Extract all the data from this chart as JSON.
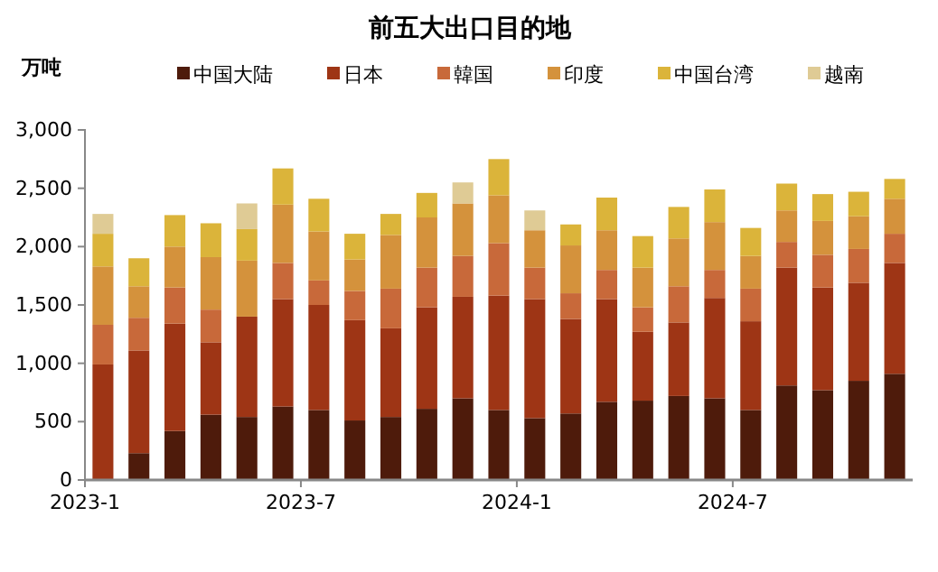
{
  "chart_data": {
    "type": "bar",
    "stacked": true,
    "title": "前五大出口目的地",
    "ylabel": "万吨",
    "categories": [
      "2023-1",
      null,
      null,
      null,
      null,
      null,
      "2023-7",
      null,
      null,
      null,
      null,
      null,
      "2024-1",
      null,
      null,
      null,
      null,
      null,
      "2024-7",
      null,
      null,
      null,
      null
    ],
    "series": [
      {
        "name": "中国大陆",
        "color": "#4e1b0b",
        "values": [
          0,
          230,
          420,
          560,
          540,
          630,
          600,
          510,
          540,
          610,
          700,
          600,
          530,
          570,
          670,
          680,
          720,
          700,
          600,
          810,
          770,
          850,
          910
        ]
      },
      {
        "name": "日本",
        "color": "#9e3515",
        "values": [
          990,
          880,
          920,
          620,
          860,
          920,
          900,
          860,
          760,
          870,
          870,
          980,
          1020,
          810,
          880,
          590,
          630,
          860,
          760,
          1010,
          880,
          840,
          950
        ]
      },
      {
        "name": "韓国",
        "color": "#c8693a",
        "values": [
          340,
          280,
          310,
          280,
          0,
          310,
          210,
          250,
          340,
          340,
          350,
          450,
          270,
          220,
          250,
          210,
          310,
          240,
          280,
          220,
          280,
          290,
          250
        ]
      },
      {
        "name": "印度",
        "color": "#d4923c",
        "values": [
          500,
          270,
          350,
          450,
          480,
          500,
          420,
          270,
          460,
          430,
          450,
          410,
          320,
          410,
          340,
          340,
          410,
          410,
          280,
          270,
          290,
          280,
          300
        ]
      },
      {
        "name": "中国台湾",
        "color": "#dbb43a",
        "values": [
          280,
          240,
          270,
          290,
          270,
          310,
          280,
          220,
          180,
          210,
          0,
          310,
          0,
          180,
          280,
          270,
          270,
          280,
          240,
          230,
          230,
          210,
          170
        ]
      },
      {
        "name": "越南",
        "color": "#dfcb95",
        "values": [
          170,
          0,
          0,
          0,
          220,
          0,
          0,
          0,
          0,
          0,
          180,
          0,
          170,
          0,
          0,
          0,
          0,
          0,
          0,
          0,
          0,
          0,
          0
        ]
      }
    ],
    "ylim": [
      0,
      3000
    ],
    "yticks": [
      0,
      500,
      {
        "value": 1000,
        "label": "1,000"
      },
      {
        "value": 1500,
        "label": "1,500"
      },
      {
        "value": 2000,
        "label": "2,000"
      },
      {
        "value": 2500,
        "label": "2,500"
      },
      {
        "value": 3000,
        "label": "3,000"
      }
    ],
    "grid": false,
    "legend": "top"
  }
}
